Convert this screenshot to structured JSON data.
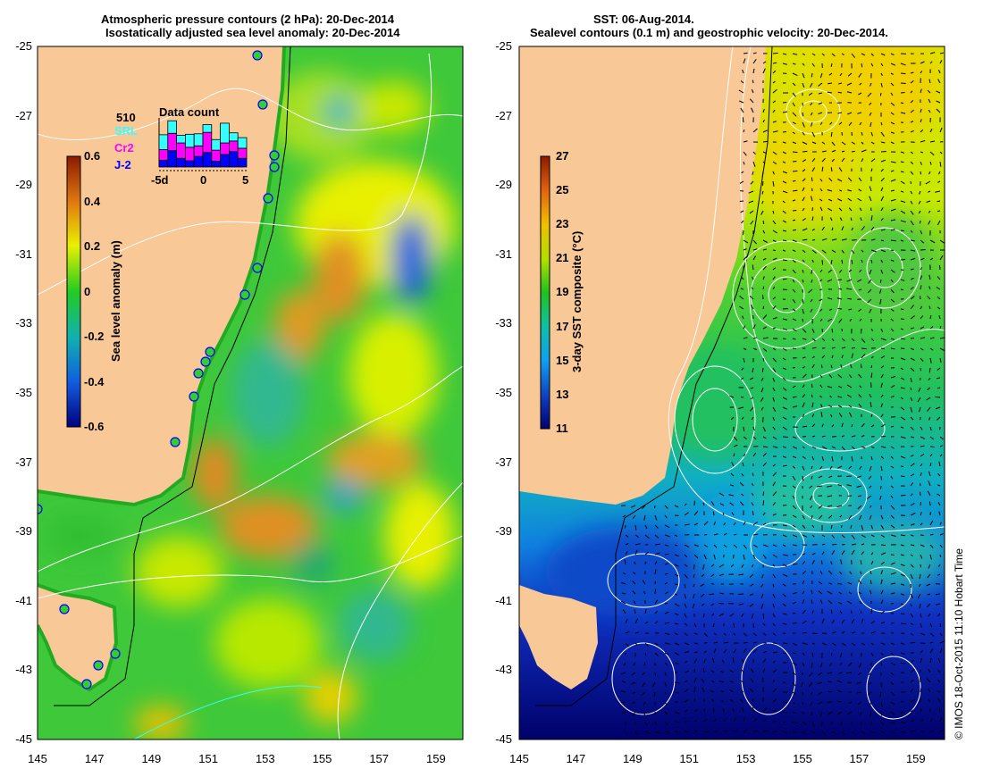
{
  "left_panel": {
    "title_line1": "Atmospheric pressure contours (2 hPa): 20-Dec-2014",
    "title_line2": "Isostatically adjusted sea level anomaly: 20-Dec-2014",
    "colorbar": {
      "label": "Sea level anomaly (m)",
      "ticks": [
        "0.6",
        "0.4",
        "0.2",
        "0",
        "-0.2",
        "-0.4",
        "-0.6"
      ],
      "range": [
        -0.6,
        0.6
      ]
    },
    "inset": {
      "title": "Data count",
      "max_label": "510",
      "legend": [
        {
          "label": "SRL",
          "color": "#33ffff"
        },
        {
          "label": "Cr2",
          "color": "#ff00ff"
        },
        {
          "label": "J-2",
          "color": "#0000ff"
        }
      ],
      "x_ticks": [
        "-5d",
        "0",
        "5"
      ],
      "max_count": 510,
      "bars": [
        {
          "j2": 70,
          "cr2": 110,
          "srl": 155
        },
        {
          "j2": 170,
          "cr2": 180,
          "srl": 130
        },
        {
          "j2": 90,
          "cr2": 160,
          "srl": 80
        },
        {
          "j2": 65,
          "cr2": 140,
          "srl": 135
        },
        {
          "j2": 110,
          "cr2": 110,
          "srl": 125
        },
        {
          "j2": 150,
          "cr2": 210,
          "srl": 80
        },
        {
          "j2": 60,
          "cr2": 115,
          "srl": 110
        },
        {
          "j2": 130,
          "cr2": 120,
          "srl": 205
        },
        {
          "j2": 160,
          "cr2": 110,
          "srl": 85
        },
        {
          "j2": 90,
          "cr2": 105,
          "srl": 110
        }
      ]
    }
  },
  "right_panel": {
    "title_line1": "SST: 06-Aug-2014.",
    "title_line2": "Sealevel contours (0.1 m) and geostrophic velocity: 20-Dec-2014.",
    "colorbar": {
      "label": "3-day SST composite (°C)",
      "ticks": [
        "27",
        "25",
        "23",
        "21",
        "19",
        "17",
        "15",
        "13",
        "11"
      ],
      "range": [
        11,
        27
      ]
    }
  },
  "axes": {
    "y_ticks": [
      "-25",
      "-27",
      "-29",
      "-31",
      "-33",
      "-35",
      "-37",
      "-39",
      "-41",
      "-43",
      "-45"
    ],
    "x_ticks": [
      "145",
      "147",
      "149",
      "151",
      "153",
      "155",
      "157",
      "159"
    ]
  },
  "credit": "© IMOS 18-Oct-2015 11:10 Hobart Time",
  "colors": {
    "land": "#f8c896",
    "coast": "#000000",
    "contour": "#ffffff"
  }
}
